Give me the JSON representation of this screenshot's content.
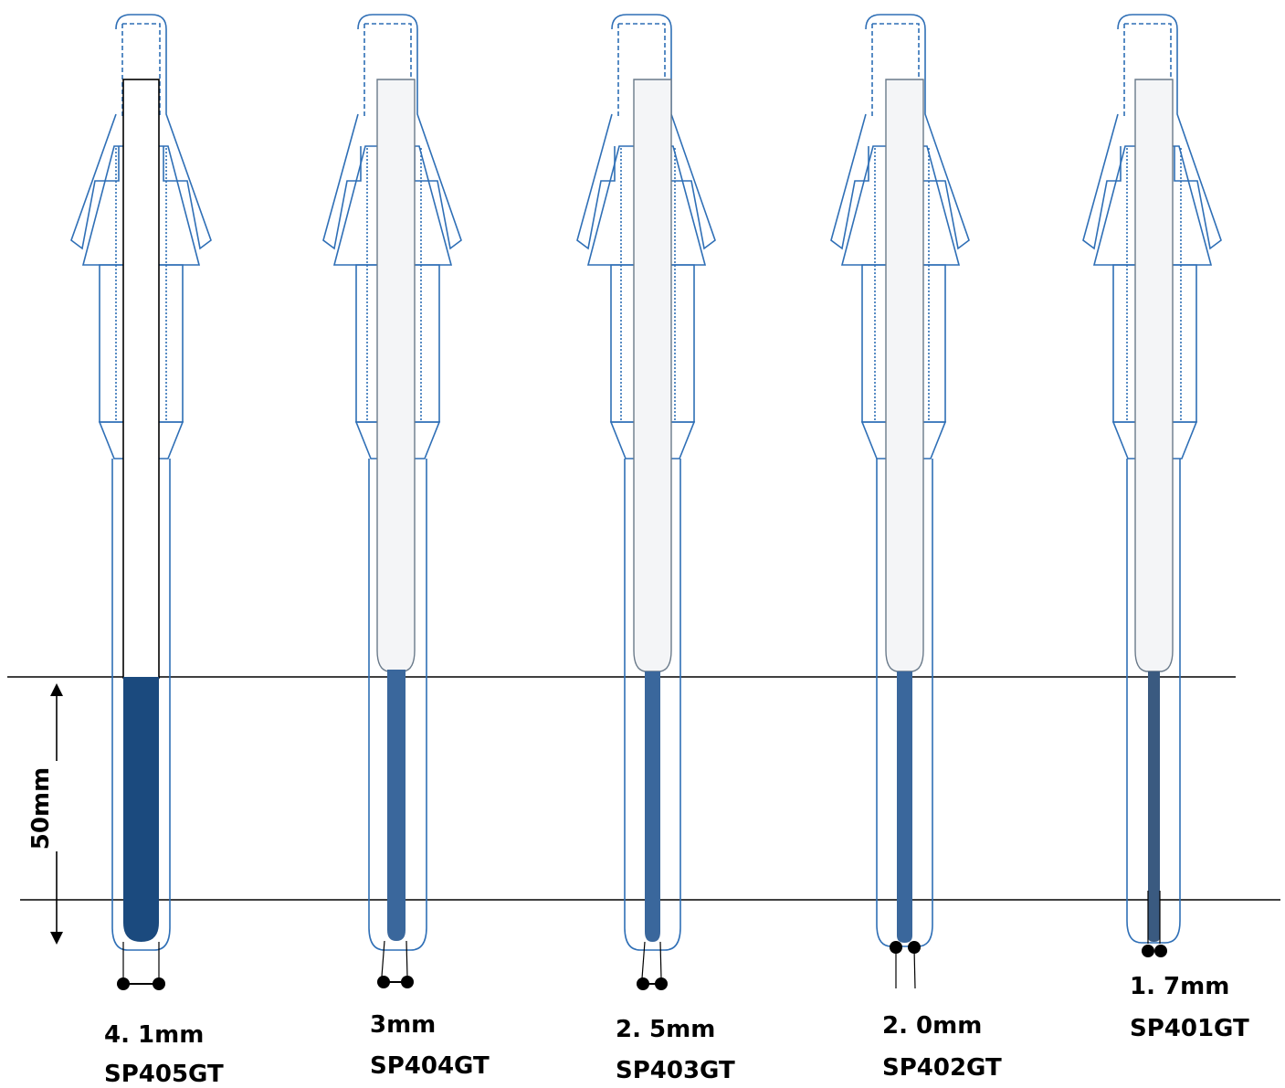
{
  "figure": {
    "dimension_label": "50mm",
    "tips": [
      {
        "diameter": "4. 1mm",
        "model": "SP405GT"
      },
      {
        "diameter": "3mm",
        "model": "SP404GT"
      },
      {
        "diameter": "2. 5mm",
        "model": "SP403GT"
      },
      {
        "diameter": "2. 0mm",
        "model": "SP402GT"
      },
      {
        "diameter": "1. 7mm",
        "model": "SP401GT"
      }
    ]
  },
  "colors": {
    "outline_blue": "#2f6fb6",
    "fill_dark_blue": "#1b4a7e",
    "fill_mid_blue": "#3a679c",
    "black": "#000000"
  }
}
